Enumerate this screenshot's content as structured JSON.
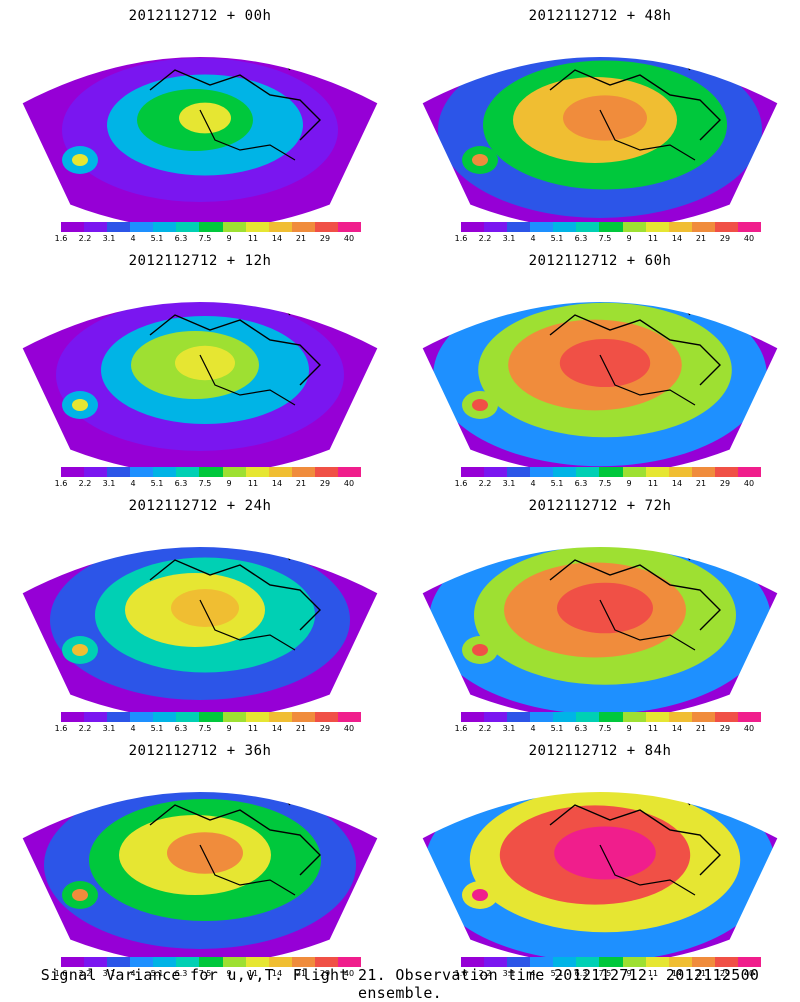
{
  "panels": [
    {
      "title": "2012112712 + 00h",
      "intensity": 0.3
    },
    {
      "title": "2012112712 + 48h",
      "intensity": 0.7
    },
    {
      "title": "2012112712 + 12h",
      "intensity": 0.4
    },
    {
      "title": "2012112712 + 60h",
      "intensity": 0.78
    },
    {
      "title": "2012112712 + 24h",
      "intensity": 0.5
    },
    {
      "title": "2012112712 + 72h",
      "intensity": 0.85
    },
    {
      "title": "2012112712 + 36h",
      "intensity": 0.6
    },
    {
      "title": "2012112712 + 84h",
      "intensity": 0.92
    }
  ],
  "colorbar": {
    "ticks": [
      "1.6",
      "2.2",
      "3.1",
      "4",
      "5.1",
      "6.3",
      "7.5",
      "9",
      "11",
      "14",
      "21",
      "29",
      "40"
    ],
    "colors": [
      "#9600d6",
      "#7a16f0",
      "#2c55e8",
      "#1e90ff",
      "#00b4e6",
      "#00d0b4",
      "#00c83c",
      "#9ee032",
      "#e6e632",
      "#f0be32",
      "#f08c3c",
      "#f05046",
      "#f01e8c"
    ]
  },
  "footer": "Signal Variance for u,v,T. Flight 21. Observation time 2012112712. 2012112500 ensemble."
}
